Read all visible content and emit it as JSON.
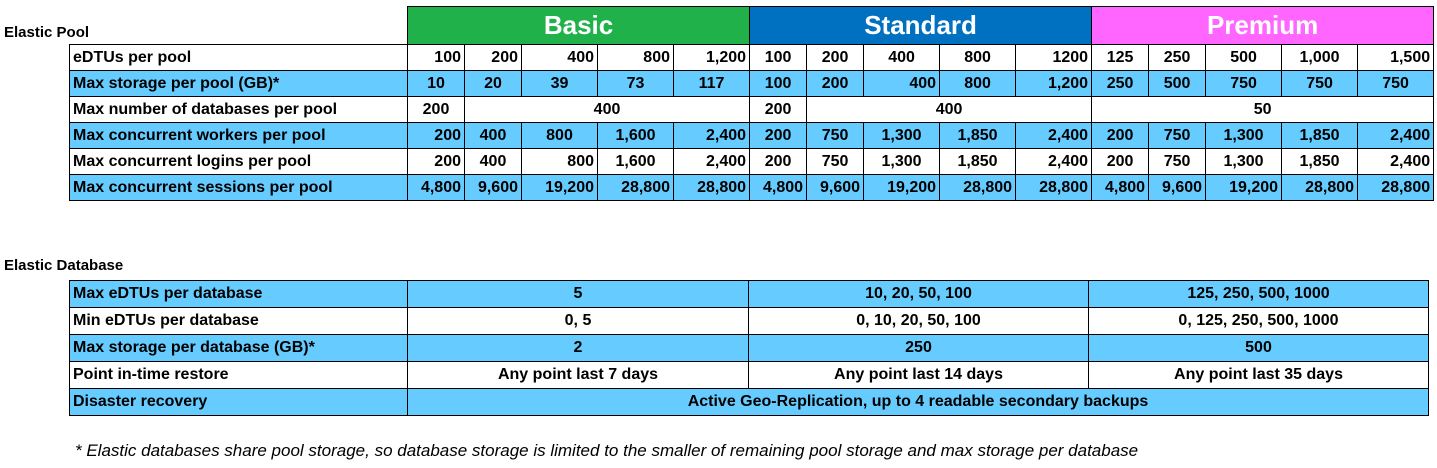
{
  "pool": {
    "section_label": "Elastic Pool",
    "tiers": [
      "Basic",
      "Standard",
      "Premium"
    ],
    "rows": [
      {
        "label": "eDTUs per pool",
        "style": "white",
        "cells": [
          [
            "100",
            1,
            "num"
          ],
          [
            "200",
            1,
            "num"
          ],
          [
            "400",
            1,
            "num"
          ],
          [
            "800",
            1,
            "num"
          ],
          [
            "1,200",
            1,
            "num"
          ],
          [
            "100",
            1,
            "ctr"
          ],
          [
            "200",
            1,
            "ctr"
          ],
          [
            "400",
            1,
            "ctr"
          ],
          [
            "800",
            1,
            "ctr"
          ],
          [
            "1200",
            1,
            "num"
          ],
          [
            "125",
            1,
            "ctr"
          ],
          [
            "250",
            1,
            "ctr"
          ],
          [
            "500",
            1,
            "ctr"
          ],
          [
            "1,000",
            1,
            "ctr"
          ],
          [
            "1,500",
            1,
            "num"
          ]
        ]
      },
      {
        "label": "Max storage per pool (GB)*",
        "style": "blue",
        "cells": [
          [
            "10",
            1,
            "ctr"
          ],
          [
            "20",
            1,
            "ctr"
          ],
          [
            "39",
            1,
            "ctr"
          ],
          [
            "73",
            1,
            "ctr"
          ],
          [
            "117",
            1,
            "ctr"
          ],
          [
            "100",
            1,
            "ctr"
          ],
          [
            "200",
            1,
            "ctr"
          ],
          [
            "400",
            1,
            "num"
          ],
          [
            "800",
            1,
            "ctr"
          ],
          [
            "1,200",
            1,
            "num"
          ],
          [
            "250",
            1,
            "ctr"
          ],
          [
            "500",
            1,
            "ctr"
          ],
          [
            "750",
            1,
            "ctr"
          ],
          [
            "750",
            1,
            "ctr"
          ],
          [
            "750",
            1,
            "ctr"
          ]
        ]
      },
      {
        "label": "Max number of databases per pool",
        "style": "white",
        "cells": [
          [
            "200",
            1,
            "ctr"
          ],
          [
            "400",
            4,
            "ctr"
          ],
          [
            "200",
            1,
            "ctr"
          ],
          [
            "400",
            4,
            "ctr"
          ],
          [
            "50",
            5,
            "ctr"
          ]
        ]
      },
      {
        "label": "Max concurrent workers per pool",
        "style": "blue",
        "cells": [
          [
            "200",
            1,
            "num"
          ],
          [
            "400",
            1,
            "ctr"
          ],
          [
            "800",
            1,
            "ctr"
          ],
          [
            "1,600",
            1,
            "ctr"
          ],
          [
            "2,400",
            1,
            "num"
          ],
          [
            "200",
            1,
            "ctr"
          ],
          [
            "750",
            1,
            "ctr"
          ],
          [
            "1,300",
            1,
            "ctr"
          ],
          [
            "1,850",
            1,
            "ctr"
          ],
          [
            "2,400",
            1,
            "num"
          ],
          [
            "200",
            1,
            "ctr"
          ],
          [
            "750",
            1,
            "ctr"
          ],
          [
            "1,300",
            1,
            "ctr"
          ],
          [
            "1,850",
            1,
            "ctr"
          ],
          [
            "2,400",
            1,
            "num"
          ]
        ]
      },
      {
        "label": "Max concurrent logins per pool",
        "style": "white",
        "cells": [
          [
            "200",
            1,
            "num"
          ],
          [
            "400",
            1,
            "ctr"
          ],
          [
            "800",
            1,
            "num"
          ],
          [
            "1,600",
            1,
            "ctr"
          ],
          [
            "2,400",
            1,
            "num"
          ],
          [
            "200",
            1,
            "ctr"
          ],
          [
            "750",
            1,
            "ctr"
          ],
          [
            "1,300",
            1,
            "ctr"
          ],
          [
            "1,850",
            1,
            "ctr"
          ],
          [
            "2,400",
            1,
            "num"
          ],
          [
            "200",
            1,
            "ctr"
          ],
          [
            "750",
            1,
            "ctr"
          ],
          [
            "1,300",
            1,
            "ctr"
          ],
          [
            "1,850",
            1,
            "ctr"
          ],
          [
            "2,400",
            1,
            "num"
          ]
        ]
      },
      {
        "label": "Max concurrent sessions per pool",
        "style": "blue",
        "cells": [
          [
            "4,800",
            1,
            "num"
          ],
          [
            "9,600",
            1,
            "num"
          ],
          [
            "19,200",
            1,
            "num"
          ],
          [
            "28,800",
            1,
            "num"
          ],
          [
            "28,800",
            1,
            "num"
          ],
          [
            "4,800",
            1,
            "num"
          ],
          [
            "9,600",
            1,
            "num"
          ],
          [
            "19,200",
            1,
            "num"
          ],
          [
            "28,800",
            1,
            "num"
          ],
          [
            "28,800",
            1,
            "num"
          ],
          [
            "4,800",
            1,
            "num"
          ],
          [
            "9,600",
            1,
            "num"
          ],
          [
            "19,200",
            1,
            "num"
          ],
          [
            "28,800",
            1,
            "num"
          ],
          [
            "28,800",
            1,
            "num"
          ]
        ]
      }
    ]
  },
  "database": {
    "section_label": "Elastic Database",
    "rows": [
      {
        "label": "Max eDTUs per database",
        "style": "blue",
        "values": [
          "5",
          "10, 20, 50, 100",
          "125, 250, 500, 1000"
        ]
      },
      {
        "label": "Min eDTUs per database",
        "style": "white",
        "values": [
          "0, 5",
          "0, 10, 20, 50, 100",
          "0, 125, 250, 500, 1000"
        ]
      },
      {
        "label": "Max storage per database (GB)*",
        "style": "blue",
        "values": [
          "2",
          "250",
          "500"
        ]
      },
      {
        "label": "Point in-time restore",
        "style": "white",
        "values": [
          "Any point last 7 days",
          "Any point last 14 days",
          "Any point last 35 days"
        ]
      },
      {
        "label": "Disaster recovery",
        "style": "blue",
        "values": [
          "Active Geo-Replication, up to 4 readable secondary backups"
        ]
      }
    ]
  },
  "footnote": "* Elastic databases share pool storage, so database storage is limited to the smaller of remaining pool storage and max storage per database",
  "colors": {
    "basic": "#21b14b",
    "standard": "#0070c0",
    "premium": "#ff66ff",
    "highlight_row": "#66ccff"
  }
}
